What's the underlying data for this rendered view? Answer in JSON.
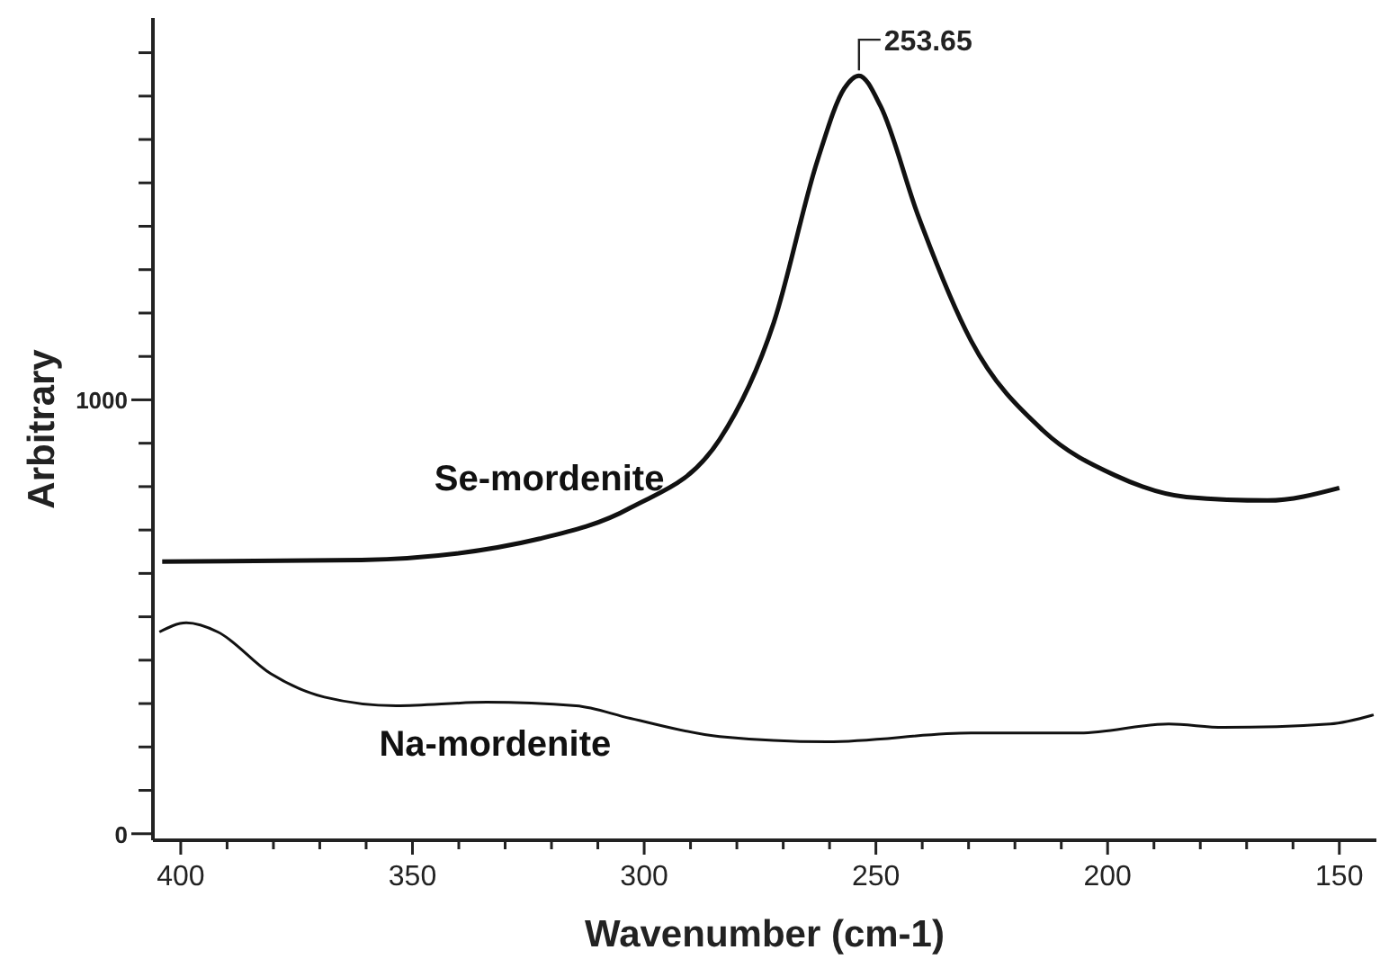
{
  "chart_data": {
    "type": "line",
    "xlabel": "Wavenumber (cm-1)",
    "ylabel": "Arbitrary",
    "xlim": [
      406,
      142
    ],
    "ylim": [
      -15,
      1880
    ],
    "xticks": [
      400,
      {
        "value": 390,
        "label": null
      },
      {
        "value": 380,
        "label": null
      },
      {
        "value": 370,
        "label": null
      },
      {
        "value": 360,
        "label": null
      },
      350,
      {
        "value": 340,
        "label": null
      },
      {
        "value": 330,
        "label": null
      },
      {
        "value": 320,
        "label": null
      },
      {
        "value": 310,
        "label": null
      },
      300,
      {
        "value": 290,
        "label": null
      },
      {
        "value": 280,
        "label": null
      },
      {
        "value": 270,
        "label": null
      },
      {
        "value": 260,
        "label": null
      },
      250,
      {
        "value": 240,
        "label": null
      },
      {
        "value": 230,
        "label": null
      },
      {
        "value": 220,
        "label": null
      },
      {
        "value": 210,
        "label": null
      },
      200,
      {
        "value": 190,
        "label": null
      },
      {
        "value": 180,
        "label": null
      },
      {
        "value": 170,
        "label": null
      },
      {
        "value": 160,
        "label": null
      },
      150
    ],
    "yticks": [
      0,
      {
        "value": 100,
        "label": null
      },
      {
        "value": 200,
        "label": null
      },
      {
        "value": 300,
        "label": null
      },
      {
        "value": 400,
        "label": null
      },
      {
        "value": 500,
        "label": null
      },
      {
        "value": 600,
        "label": null
      },
      {
        "value": 700,
        "label": null
      },
      {
        "value": 800,
        "label": null
      },
      {
        "value": 900,
        "label": null
      },
      1000,
      {
        "value": 1100,
        "label": null
      },
      {
        "value": 1200,
        "label": null
      },
      {
        "value": 1300,
        "label": null
      },
      {
        "value": 1400,
        "label": null
      },
      {
        "value": 1500,
        "label": null
      },
      {
        "value": 1600,
        "label": null
      },
      {
        "value": 1700,
        "label": null
      },
      {
        "value": 1800,
        "label": null
      }
    ],
    "grid": false,
    "marker": "none",
    "line_style": "solid",
    "series": [
      {
        "name": "Se-mordenite",
        "color": "#111111",
        "x": [
          404,
          361,
          322.5,
          303,
          283.7,
          272,
          262.6,
          256.8,
          253.65,
          249,
          241,
          229.5,
          214,
          198.4,
          183,
          165.5,
          150
        ],
        "values": [
          627,
          631,
          680,
          751,
          909,
          1179,
          1552,
          1718,
          1747,
          1677,
          1428,
          1137,
          930,
          826,
          776,
          768,
          797
        ]
      },
      {
        "name": "Na-mordenite",
        "color": "#111111",
        "x": [
          404.6,
          398.8,
          392,
          380.6,
          369,
          353.5,
          334,
          314.7,
          303,
          283.7,
          260.5,
          229.5,
          206,
          186.8,
          175,
          152,
          142.6
        ],
        "values": [
          465,
          486,
          465,
          369,
          315,
          295,
          303,
          295,
          266,
          224,
          212,
          232,
          232,
          253,
          245,
          253,
          274
        ]
      }
    ],
    "annotations": [
      {
        "text": "253.65",
        "x": 253.65,
        "y": 1747
      }
    ]
  }
}
